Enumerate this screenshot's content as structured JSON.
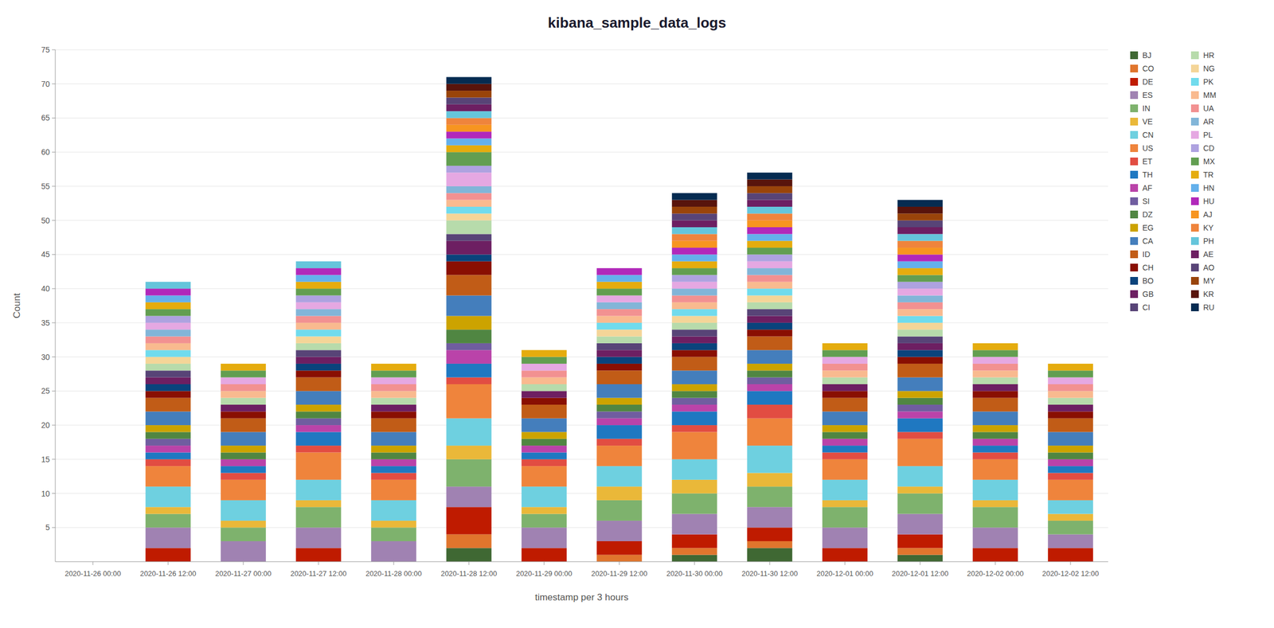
{
  "chart_data": {
    "type": "bar",
    "stacked": true,
    "title": "kibana_sample_data_logs",
    "xlabel": "timestamp per 3 hours",
    "ylabel": "Count",
    "ylim": [
      0,
      75
    ],
    "yticks": [
      5,
      10,
      15,
      20,
      25,
      30,
      35,
      40,
      45,
      50,
      55,
      60,
      65,
      70,
      75
    ],
    "grid": true,
    "legend": "right",
    "categories": [
      "2020-11-26 00:00",
      "2020-11-26 12:00",
      "2020-11-27 00:00",
      "2020-11-27 12:00",
      "2020-11-28 00:00",
      "2020-11-28 12:00",
      "2020-11-29 00:00",
      "2020-11-29 12:00",
      "2020-11-30 00:00",
      "2020-11-30 12:00",
      "2020-12-01 00:00",
      "2020-12-01 12:00",
      "2020-12-02 00:00",
      "2020-12-02 12:00"
    ],
    "series": [
      {
        "name": "BJ",
        "color": "#3F6833",
        "values": [
          0,
          0,
          0,
          0,
          0,
          2,
          0,
          0,
          1,
          2,
          0,
          1,
          0,
          0
        ]
      },
      {
        "name": "CO",
        "color": "#E0752D",
        "values": [
          0,
          0,
          0,
          0,
          0,
          2,
          0,
          1,
          1,
          1,
          0,
          1,
          0,
          0
        ]
      },
      {
        "name": "DE",
        "color": "#BF1B00",
        "values": [
          0,
          2,
          0,
          2,
          0,
          4,
          2,
          2,
          2,
          2,
          2,
          2,
          2,
          2
        ]
      },
      {
        "name": "ES",
        "color": "#A082B2",
        "values": [
          0,
          3,
          3,
          3,
          3,
          3,
          3,
          3,
          3,
          3,
          3,
          3,
          3,
          2
        ]
      },
      {
        "name": "IN",
        "color": "#7EB26D",
        "values": [
          0,
          2,
          2,
          3,
          2,
          4,
          2,
          3,
          3,
          3,
          3,
          3,
          3,
          2
        ]
      },
      {
        "name": "VE",
        "color": "#EAB839",
        "values": [
          0,
          1,
          1,
          1,
          1,
          2,
          1,
          2,
          2,
          2,
          1,
          1,
          1,
          1
        ]
      },
      {
        "name": "CN",
        "color": "#6ED0E0",
        "values": [
          0,
          3,
          3,
          3,
          3,
          4,
          3,
          3,
          3,
          4,
          3,
          3,
          3,
          2
        ]
      },
      {
        "name": "US",
        "color": "#EF843C",
        "values": [
          0,
          3,
          3,
          4,
          3,
          5,
          3,
          3,
          4,
          4,
          3,
          4,
          3,
          3
        ]
      },
      {
        "name": "ET",
        "color": "#E24D42",
        "values": [
          0,
          1,
          1,
          1,
          1,
          1,
          1,
          1,
          1,
          2,
          1,
          1,
          1,
          1
        ]
      },
      {
        "name": "TH",
        "color": "#1F78C1",
        "values": [
          0,
          1,
          1,
          2,
          1,
          2,
          1,
          2,
          2,
          2,
          1,
          2,
          1,
          1
        ]
      },
      {
        "name": "AF",
        "color": "#BA43A9",
        "values": [
          0,
          1,
          1,
          1,
          1,
          2,
          1,
          1,
          1,
          1,
          1,
          1,
          1,
          1
        ]
      },
      {
        "name": "SI",
        "color": "#705DA0",
        "values": [
          0,
          1,
          0,
          1,
          0,
          1,
          0,
          1,
          1,
          1,
          0,
          1,
          0,
          0
        ]
      },
      {
        "name": "DZ",
        "color": "#508642",
        "values": [
          0,
          1,
          1,
          1,
          1,
          2,
          1,
          1,
          1,
          1,
          1,
          1,
          1,
          1
        ]
      },
      {
        "name": "EG",
        "color": "#CCA300",
        "values": [
          0,
          1,
          1,
          1,
          1,
          2,
          1,
          1,
          1,
          1,
          1,
          1,
          1,
          1
        ]
      },
      {
        "name": "CA",
        "color": "#447EBC",
        "values": [
          0,
          2,
          2,
          2,
          2,
          3,
          2,
          2,
          2,
          2,
          2,
          2,
          2,
          2
        ]
      },
      {
        "name": "ID",
        "color": "#C15C17",
        "values": [
          0,
          2,
          2,
          2,
          2,
          3,
          2,
          2,
          2,
          2,
          2,
          2,
          2,
          2
        ]
      },
      {
        "name": "CH",
        "color": "#890F02",
        "values": [
          0,
          1,
          1,
          1,
          1,
          2,
          1,
          1,
          1,
          1,
          1,
          1,
          1,
          1
        ]
      },
      {
        "name": "BO",
        "color": "#0A437C",
        "values": [
          0,
          1,
          0,
          1,
          0,
          1,
          0,
          1,
          1,
          1,
          0,
          1,
          0,
          0
        ]
      },
      {
        "name": "GB",
        "color": "#6D1F62",
        "values": [
          0,
          1,
          1,
          1,
          1,
          2,
          1,
          1,
          1,
          1,
          1,
          1,
          1,
          1
        ]
      },
      {
        "name": "CI",
        "color": "#584477",
        "values": [
          0,
          1,
          0,
          1,
          0,
          1,
          0,
          1,
          1,
          1,
          0,
          1,
          0,
          0
        ]
      },
      {
        "name": "HR",
        "color": "#B7DBAB",
        "values": [
          0,
          1,
          1,
          1,
          1,
          2,
          1,
          1,
          1,
          1,
          1,
          1,
          1,
          1
        ]
      },
      {
        "name": "NG",
        "color": "#F4D598",
        "values": [
          0,
          1,
          0,
          1,
          0,
          1,
          0,
          1,
          1,
          1,
          0,
          1,
          0,
          0
        ]
      },
      {
        "name": "PK",
        "color": "#70DBED",
        "values": [
          0,
          1,
          0,
          1,
          0,
          1,
          0,
          1,
          1,
          1,
          0,
          1,
          0,
          0
        ]
      },
      {
        "name": "MM",
        "color": "#F9BA8F",
        "values": [
          0,
          1,
          1,
          1,
          1,
          1,
          1,
          1,
          1,
          1,
          1,
          1,
          1,
          1
        ]
      },
      {
        "name": "UA",
        "color": "#F29191",
        "values": [
          0,
          1,
          1,
          1,
          1,
          1,
          1,
          1,
          1,
          1,
          1,
          1,
          1,
          1
        ]
      },
      {
        "name": "AR",
        "color": "#82B5D8",
        "values": [
          0,
          1,
          0,
          1,
          0,
          1,
          0,
          1,
          1,
          1,
          0,
          1,
          0,
          0
        ]
      },
      {
        "name": "PL",
        "color": "#E5A8E2",
        "values": [
          0,
          1,
          1,
          1,
          1,
          2,
          1,
          1,
          1,
          1,
          1,
          1,
          1,
          1
        ]
      },
      {
        "name": "CD",
        "color": "#AEA2E0",
        "values": [
          0,
          1,
          0,
          1,
          0,
          1,
          0,
          0,
          1,
          1,
          0,
          1,
          0,
          0
        ]
      },
      {
        "name": "MX",
        "color": "#629E51",
        "values": [
          0,
          1,
          1,
          1,
          1,
          2,
          1,
          1,
          1,
          1,
          1,
          1,
          1,
          1
        ]
      },
      {
        "name": "TR",
        "color": "#E5AC0E",
        "values": [
          0,
          1,
          1,
          1,
          1,
          1,
          1,
          1,
          1,
          1,
          1,
          1,
          1,
          1
        ]
      },
      {
        "name": "HN",
        "color": "#64B0EB",
        "values": [
          0,
          1,
          0,
          1,
          0,
          1,
          0,
          1,
          1,
          1,
          0,
          1,
          0,
          0
        ]
      },
      {
        "name": "HU",
        "color": "#B128BA",
        "values": [
          0,
          1,
          0,
          1,
          0,
          1,
          0,
          1,
          1,
          1,
          0,
          1,
          0,
          0
        ]
      },
      {
        "name": "AJ",
        "color": "#F79520",
        "values": [
          0,
          0,
          0,
          0,
          0,
          1,
          0,
          0,
          1,
          1,
          0,
          1,
          0,
          0
        ]
      },
      {
        "name": "KY",
        "color": "#EF843C",
        "values": [
          0,
          0,
          0,
          0,
          0,
          1,
          0,
          0,
          1,
          1,
          0,
          1,
          0,
          0
        ]
      },
      {
        "name": "PH",
        "color": "#65C5DB",
        "values": [
          0,
          1,
          0,
          1,
          0,
          1,
          0,
          0,
          1,
          1,
          0,
          1,
          0,
          0
        ]
      },
      {
        "name": "AE",
        "color": "#6D1F62",
        "values": [
          0,
          0,
          0,
          0,
          0,
          1,
          0,
          0,
          1,
          1,
          0,
          1,
          0,
          0
        ]
      },
      {
        "name": "AO",
        "color": "#584477",
        "values": [
          0,
          0,
          0,
          0,
          0,
          1,
          0,
          0,
          1,
          1,
          0,
          1,
          0,
          0
        ]
      },
      {
        "name": "MY",
        "color": "#99440A",
        "values": [
          0,
          0,
          0,
          0,
          0,
          1,
          0,
          0,
          1,
          1,
          0,
          1,
          0,
          0
        ]
      },
      {
        "name": "KR",
        "color": "#58140C",
        "values": [
          0,
          0,
          0,
          0,
          0,
          1,
          0,
          0,
          1,
          1,
          0,
          1,
          0,
          0
        ]
      },
      {
        "name": "RU",
        "color": "#052B51",
        "values": [
          0,
          0,
          0,
          0,
          0,
          1,
          0,
          0,
          1,
          1,
          0,
          1,
          0,
          0
        ]
      }
    ]
  }
}
